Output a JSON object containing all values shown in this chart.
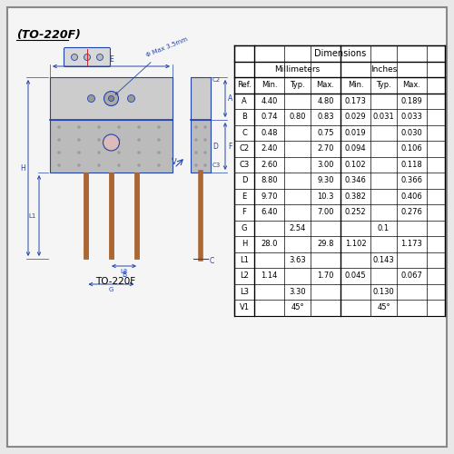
{
  "title": "(TO-220F)",
  "bg_color": "#e8e8e8",
  "inner_bg": "#f5f5f5",
  "border_color": "#666666",
  "blue": "#2244aa",
  "red": "#cc2222",
  "brown": "#aa6633",
  "table_data": {
    "rows": [
      [
        "A",
        "4.40",
        "",
        "4.80",
        "0.173",
        "",
        "0.189"
      ],
      [
        "B",
        "0.74",
        "0.80",
        "0.83",
        "0.029",
        "0.031",
        "0.033"
      ],
      [
        "C",
        "0.48",
        "",
        "0.75",
        "0.019",
        "",
        "0.030"
      ],
      [
        "C2",
        "2.40",
        "",
        "2.70",
        "0.094",
        "",
        "0.106"
      ],
      [
        "C3",
        "2.60",
        "",
        "3.00",
        "0.102",
        "",
        "0.118"
      ],
      [
        "D",
        "8.80",
        "",
        "9.30",
        "0.346",
        "",
        "0.366"
      ],
      [
        "E",
        "9.70",
        "",
        "10.3",
        "0.382",
        "",
        "0.406"
      ],
      [
        "F",
        "6.40",
        "",
        "7.00",
        "0.252",
        "",
        "0.276"
      ],
      [
        "G",
        "",
        "2.54",
        "",
        "",
        "0.1",
        ""
      ],
      [
        "H",
        "28.0",
        "",
        "29.8",
        "1.102",
        "",
        "1.173"
      ],
      [
        "L1",
        "",
        "3.63",
        "",
        "",
        "0.143",
        ""
      ],
      [
        "L2",
        "1.14",
        "",
        "1.70",
        "0.045",
        "",
        "0.067"
      ],
      [
        "L3",
        "",
        "3.30",
        "",
        "",
        "0.130",
        ""
      ],
      [
        "V1",
        "",
        "45°",
        "",
        "",
        "45°",
        ""
      ]
    ]
  }
}
